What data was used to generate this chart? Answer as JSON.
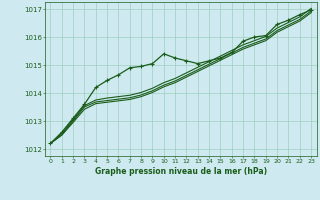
{
  "title": "Graphe pression niveau de la mer (hPa)",
  "bg_color": "#ceeaf0",
  "grid_color": "#9ecfbf",
  "line_color": "#1a5c1a",
  "xlim": [
    -0.5,
    23.5
  ],
  "ylim": [
    1011.75,
    1017.25
  ],
  "yticks": [
    1012,
    1013,
    1014,
    1015,
    1016,
    1017
  ],
  "xticks": [
    0,
    1,
    2,
    3,
    4,
    5,
    6,
    7,
    8,
    9,
    10,
    11,
    12,
    13,
    14,
    15,
    16,
    17,
    18,
    19,
    20,
    21,
    22,
    23
  ],
  "series": [
    {
      "x": [
        0,
        1,
        2,
        3,
        4,
        5,
        6,
        7,
        8,
        9,
        10,
        11,
        12,
        13,
        14,
        15,
        16,
        17,
        18,
        19,
        20,
        21,
        22,
        23
      ],
      "y": [
        1012.2,
        1012.55,
        1013.05,
        1013.55,
        1013.75,
        1013.82,
        1013.87,
        1013.92,
        1014.02,
        1014.17,
        1014.37,
        1014.52,
        1014.72,
        1014.92,
        1015.12,
        1015.32,
        1015.52,
        1015.72,
        1015.87,
        1016.02,
        1016.32,
        1016.52,
        1016.72,
        1017.02
      ],
      "marker": null,
      "markersize": 0,
      "linewidth": 0.8
    },
    {
      "x": [
        0,
        1,
        2,
        3,
        4,
        5,
        6,
        7,
        8,
        9,
        10,
        11,
        12,
        13,
        14,
        15,
        16,
        17,
        18,
        19,
        20,
        21,
        22,
        23
      ],
      "y": [
        1012.2,
        1012.5,
        1013.0,
        1013.5,
        1013.68,
        1013.73,
        1013.78,
        1013.83,
        1013.93,
        1014.08,
        1014.28,
        1014.43,
        1014.63,
        1014.83,
        1015.03,
        1015.23,
        1015.43,
        1015.63,
        1015.78,
        1015.93,
        1016.23,
        1016.43,
        1016.63,
        1016.93
      ],
      "marker": null,
      "markersize": 0,
      "linewidth": 0.8
    },
    {
      "x": [
        0,
        1,
        2,
        3,
        4,
        5,
        6,
        7,
        8,
        9,
        10,
        11,
        12,
        13,
        14,
        15,
        16,
        17,
        18,
        19,
        20,
        21,
        22,
        23
      ],
      "y": [
        1012.2,
        1012.5,
        1012.95,
        1013.42,
        1013.62,
        1013.67,
        1013.72,
        1013.77,
        1013.87,
        1014.02,
        1014.22,
        1014.37,
        1014.57,
        1014.77,
        1014.97,
        1015.17,
        1015.37,
        1015.57,
        1015.72,
        1015.87,
        1016.17,
        1016.37,
        1016.57,
        1016.87
      ],
      "marker": null,
      "markersize": 0,
      "linewidth": 0.8
    },
    {
      "x": [
        0,
        1,
        2,
        3,
        4,
        5,
        6,
        7,
        8,
        9,
        10,
        11,
        12,
        13,
        14,
        15,
        16,
        17,
        18,
        19,
        20,
        21,
        22,
        23
      ],
      "y": [
        1012.2,
        1012.6,
        1013.1,
        1013.6,
        1014.2,
        1014.45,
        1014.65,
        1014.9,
        1014.95,
        1015.05,
        1015.4,
        1015.25,
        1015.15,
        1015.05,
        1015.15,
        1015.25,
        1015.45,
        1015.85,
        1016.0,
        1016.05,
        1016.45,
        1016.6,
        1016.8,
        1016.97
      ],
      "marker": "+",
      "markersize": 3.5,
      "linewidth": 0.9
    }
  ]
}
